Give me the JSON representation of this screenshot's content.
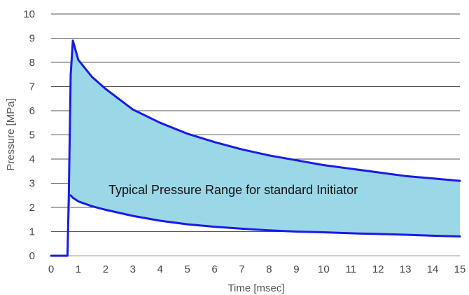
{
  "chart_data": {
    "type": "area",
    "title": "",
    "xlabel": "Time [msec]",
    "ylabel": "Pressure [MPa]",
    "xlim": [
      0,
      15
    ],
    "ylim": [
      0,
      10
    ],
    "x_ticks": [
      "0",
      "1",
      "2",
      "3",
      "4",
      "5",
      "6",
      "7",
      "8",
      "9",
      "10",
      "11",
      "12",
      "13",
      "14",
      "15"
    ],
    "y_ticks": [
      "0",
      "1",
      "2",
      "3",
      "4",
      "5",
      "6",
      "7",
      "8",
      "9",
      "10"
    ],
    "grid": "horizontal",
    "annotation": "Typical Pressure Range for standard Initiator",
    "colors": {
      "line": "#1a1ae6",
      "fill": "#9ad8e8",
      "grid": "#555555"
    },
    "series": [
      {
        "x": [
          0,
          0.6,
          0.65,
          0.72,
          0.8,
          0.85,
          0.9,
          1.0,
          1.5,
          2,
          3,
          4,
          5,
          6,
          7,
          8,
          9,
          10,
          11,
          12,
          13,
          14,
          15
        ],
        "values": [
          0,
          0,
          2.5,
          7.5,
          8.9,
          8.7,
          8.5,
          8.1,
          7.4,
          6.9,
          6.05,
          5.5,
          5.05,
          4.7,
          4.4,
          4.15,
          3.95,
          3.75,
          3.6,
          3.45,
          3.3,
          3.2,
          3.1
        ]
      },
      {
        "x": [
          0.72,
          0.8,
          1,
          1.5,
          2,
          3,
          4,
          5,
          6,
          7,
          8,
          9,
          10,
          11,
          12,
          13,
          14,
          15
        ],
        "values": [
          2.5,
          2.4,
          2.25,
          2.05,
          1.9,
          1.65,
          1.45,
          1.3,
          1.2,
          1.12,
          1.05,
          1.0,
          0.97,
          0.93,
          0.9,
          0.87,
          0.83,
          0.8
        ]
      }
    ]
  }
}
